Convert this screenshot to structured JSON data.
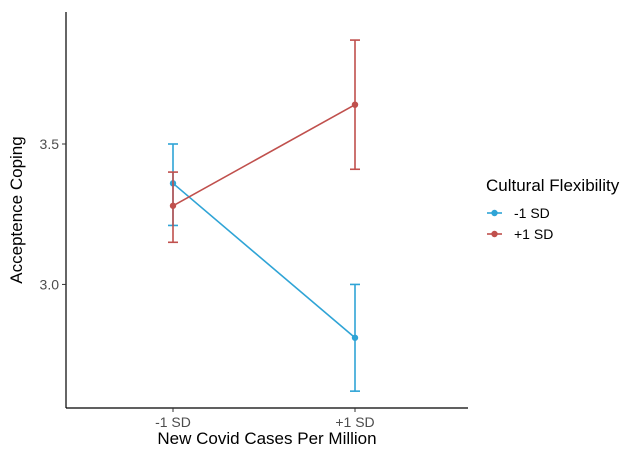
{
  "chart_data": {
    "type": "line",
    "title": "",
    "xlabel": "New Covid Cases Per Million",
    "ylabel": "Acceptence Coping",
    "categories": [
      "-1 SD",
      "+1 SD"
    ],
    "ylim": [
      2.56,
      3.97
    ],
    "yticks": [
      3.0,
      3.5
    ],
    "ytick_labels": [
      "3.0",
      "3.5"
    ],
    "grid": false,
    "legend": {
      "title": "Cultural Flexibility",
      "position": "right"
    },
    "series": [
      {
        "name": "-1 SD",
        "color": "#2fa4d6",
        "values": [
          3.36,
          2.81
        ],
        "lower": [
          3.21,
          2.62
        ],
        "upper": [
          3.5,
          3.0
        ]
      },
      {
        "name": "+1 SD",
        "color": "#c0504d",
        "values": [
          3.28,
          3.64
        ],
        "lower": [
          3.15,
          3.41
        ],
        "upper": [
          3.4,
          3.87
        ]
      }
    ]
  }
}
